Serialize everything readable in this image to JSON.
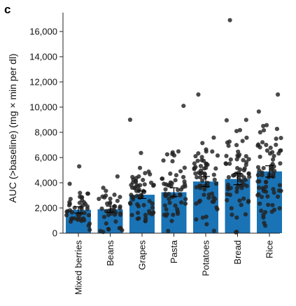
{
  "panel_label": "c",
  "colors": {
    "bar": "#1a73b5",
    "points": "#222222",
    "axis": "#222222"
  },
  "chart_data": {
    "type": "bar",
    "ylabel": "AUC (>baseline) (mg × min per dl)",
    "xlabel": "",
    "ylim": [
      0,
      17500
    ],
    "yticks": [
      0,
      2000,
      4000,
      6000,
      8000,
      10000,
      12000,
      14000,
      16000
    ],
    "ytick_labels": [
      "0",
      "2,000",
      "4,000",
      "6,000",
      "8,000",
      "10,000",
      "12,000",
      "14,000",
      "16,000"
    ],
    "categories": [
      "Mixed berries",
      "Beans",
      "Grapes",
      "Pasta",
      "Potatoes",
      "Bread",
      "Rice"
    ],
    "values": [
      1850,
      1900,
      3050,
      3250,
      4100,
      4300,
      4900
    ],
    "error": [
      250,
      250,
      300,
      350,
      400,
      450,
      450
    ],
    "points": {
      "max": [
        5300,
        4500,
        9000,
        10100,
        11000,
        16900,
        11000
      ],
      "spread": [
        1300,
        1250,
        2000,
        2300,
        2600,
        2800,
        2600
      ],
      "n": [
        45,
        40,
        60,
        55,
        65,
        70,
        75
      ]
    },
    "grid": false,
    "legend": "none"
  }
}
